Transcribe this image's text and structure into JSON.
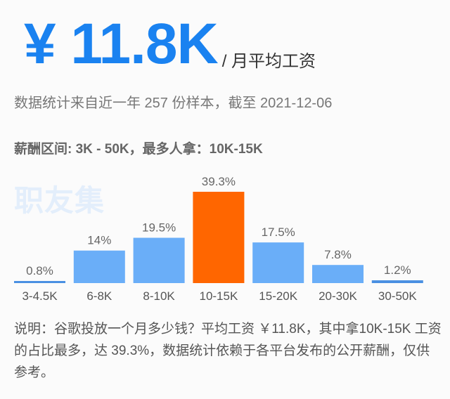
{
  "header": {
    "amount": "¥ 11.8K",
    "unit": "/ 月平均工资",
    "subtitle": "数据统计来自近一年 257 份样本，截至 2021-12-06",
    "range_text": "薪酬区间: 3K - 50K，最多人拿：10K-15K"
  },
  "watermark": "职友集",
  "chart_data": {
    "type": "bar",
    "categories": [
      "3-4.5K",
      "6-8K",
      "8-10K",
      "10-15K",
      "15-20K",
      "20-30K",
      "30-50K"
    ],
    "values": [
      0.8,
      14,
      19.5,
      39.3,
      17.5,
      7.8,
      1.2
    ],
    "labels": [
      "0.8%",
      "14%",
      "19.5%",
      "39.3%",
      "17.5%",
      "7.8%",
      "1.2%"
    ],
    "highlight_index": 3,
    "colors": {
      "default": "#6aaef8",
      "highlight": "#ff6600",
      "baseline_bar": "#4a90e2"
    },
    "grid": false,
    "title": "",
    "xlabel": "",
    "ylabel": ""
  },
  "note": "说明：谷歌投放一个月多少钱？平均工资 ￥11.8K，其中拿10K-15K 工资的占比最多，达 39.3%，数据统计依赖于各平台发布的公开薪酬，仅供参考。"
}
